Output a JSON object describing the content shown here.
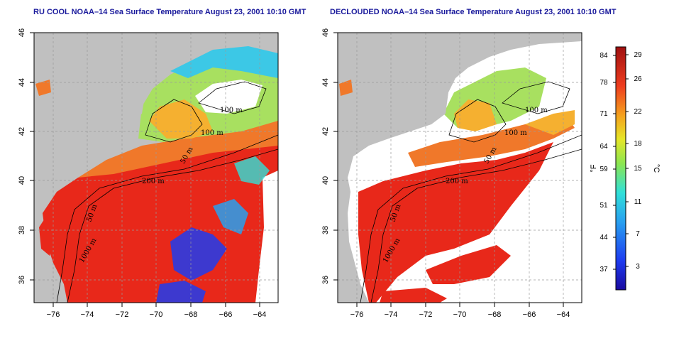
{
  "panels": [
    {
      "title": "RU COOL NOAA–14 Sea Surface Temperature August 23, 2001 10:10 GMT",
      "contour_labels": [
        "100 m",
        "100 m",
        "50 m",
        "200 m",
        "50 m",
        "1000 m"
      ]
    },
    {
      "title": "DECLOUDED NOAA–14 Sea Surface Temperature August 23, 2001 10:10 GMT",
      "contour_labels": [
        "100 m",
        "100 m",
        "50 m",
        "200 m",
        "50 m",
        "1000 m"
      ]
    }
  ],
  "axes": {
    "lon_ticks": [
      "−76",
      "−74",
      "−72",
      "−70",
      "−68",
      "−66",
      "−64"
    ],
    "lat_ticks": [
      "36",
      "38",
      "40",
      "42",
      "44",
      "46"
    ]
  },
  "colorbar": {
    "unit_left": "°F",
    "unit_right": "°C",
    "f_ticks": [
      "84",
      "78",
      "71",
      "64",
      "59",
      "51",
      "44",
      "37"
    ],
    "c_ticks": [
      "29",
      "26",
      "22",
      "18",
      "15",
      "11",
      "7",
      "3"
    ]
  },
  "colors": {
    "land": "#c0c0c0",
    "cloud": "#ffffff",
    "title": "#1a1a9c",
    "warm": "#e8281a",
    "cool": "#3cc8e6"
  }
}
